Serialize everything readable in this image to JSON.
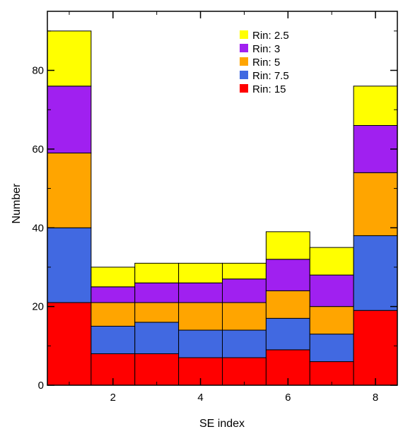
{
  "chart_data": {
    "type": "bar",
    "stacked": true,
    "xlabel": "SE index",
    "ylabel": "Number",
    "x": [
      1,
      2,
      3,
      4,
      5,
      6,
      7,
      8
    ],
    "xticks": [
      2,
      4,
      6,
      8
    ],
    "xlim": [
      0.5,
      8.5
    ],
    "yticks": [
      0,
      20,
      40,
      60,
      80
    ],
    "ylim": [
      0,
      95
    ],
    "legend_position": "top-right",
    "series": [
      {
        "name": "Rin: 15",
        "color": "#ff0000",
        "values": [
          21,
          8,
          8,
          7,
          7,
          9,
          6,
          19
        ]
      },
      {
        "name": "Rin: 7.5",
        "color": "#4169e1",
        "values": [
          19,
          7,
          8,
          7,
          7,
          8,
          7,
          19
        ]
      },
      {
        "name": "Rin: 5",
        "color": "#ffa500",
        "values": [
          19,
          6,
          5,
          7,
          7,
          7,
          7,
          16
        ]
      },
      {
        "name": "Rin: 3",
        "color": "#a020f0",
        "values": [
          17,
          4,
          5,
          5,
          6,
          8,
          8,
          12
        ]
      },
      {
        "name": "Rin: 2.5",
        "color": "#ffff00",
        "values": [
          14,
          5,
          5,
          5,
          4,
          7,
          7,
          10
        ]
      }
    ]
  }
}
